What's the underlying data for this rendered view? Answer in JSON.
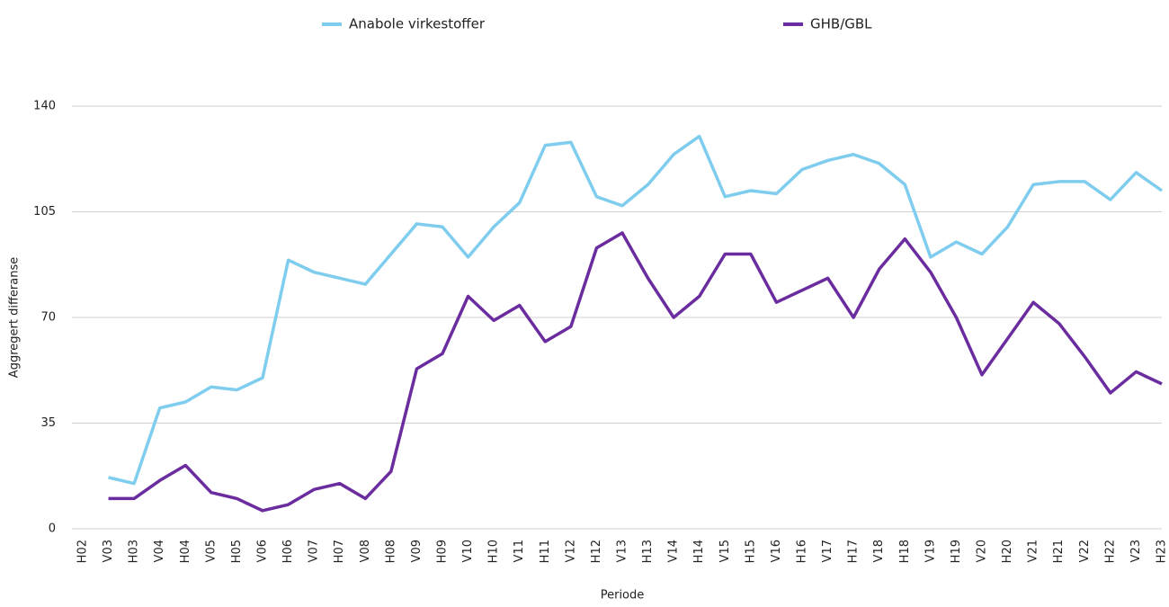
{
  "chart_data": {
    "type": "line",
    "y_label": "Aggregert differanse",
    "x_label": "Periode",
    "categories": [
      "H02",
      "V03",
      "H03",
      "V04",
      "H04",
      "V05",
      "H05",
      "V06",
      "H06",
      "V07",
      "H07",
      "V08",
      "H08",
      "V09",
      "H09",
      "V10",
      "H10",
      "V11",
      "H11",
      "V12",
      "H12",
      "V13",
      "H13",
      "V14",
      "H14",
      "V15",
      "H15",
      "V16",
      "H16",
      "V17",
      "H17",
      "V18",
      "H18",
      "V19",
      "H19",
      "V20",
      "H20",
      "V21",
      "H21",
      "V22",
      "H22",
      "V23",
      "H23"
    ],
    "series": [
      {
        "name": "Anabole virkestoffer",
        "color": "#7fcdee",
        "values": [
          null,
          17,
          15,
          40,
          42,
          47,
          46,
          50,
          89,
          85,
          83,
          81,
          91,
          101,
          100,
          90,
          100,
          108,
          127,
          128,
          110,
          107,
          114,
          124,
          130,
          110,
          112,
          111,
          119,
          122,
          124,
          121,
          114,
          90,
          95,
          91,
          100,
          114,
          115,
          115,
          109,
          118,
          112
        ]
      },
      {
        "name": "GHB/GBL",
        "color": "#6a2c9e",
        "values": [
          null,
          10,
          10,
          16,
          21,
          12,
          10,
          6,
          8,
          13,
          15,
          10,
          19,
          53,
          58,
          77,
          69,
          74,
          62,
          67,
          93,
          98,
          83,
          70,
          77,
          91,
          91,
          75,
          79,
          83,
          70,
          86,
          96,
          85,
          70,
          51,
          63,
          75,
          68,
          57,
          45,
          52,
          48
        ]
      }
    ],
    "ylim": [
      0,
      140
    ],
    "yticks": [
      0,
      35,
      70,
      105,
      140
    ],
    "grid": true
  }
}
